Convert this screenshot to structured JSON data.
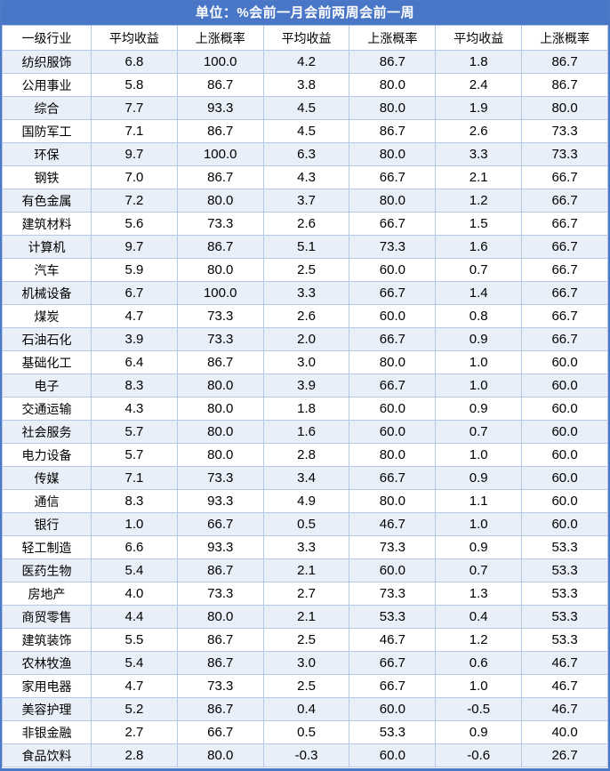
{
  "title": "单位：%会前一月会前两周会前一周",
  "chart_data": {
    "type": "table",
    "title": "单位：%会前一月会前两周会前一周",
    "columns": [
      "一级行业",
      "平均收益",
      "上涨概率",
      "平均收益",
      "上涨概率",
      "平均收益",
      "上涨概率"
    ],
    "rows": [
      [
        "纺织服饰",
        6.8,
        100.0,
        4.2,
        86.7,
        1.8,
        86.7
      ],
      [
        "公用事业",
        5.8,
        86.7,
        3.8,
        80.0,
        2.4,
        86.7
      ],
      [
        "综合",
        7.7,
        93.3,
        4.5,
        80.0,
        1.9,
        80.0
      ],
      [
        "国防军工",
        7.1,
        86.7,
        4.5,
        86.7,
        2.6,
        73.3
      ],
      [
        "环保",
        9.7,
        100.0,
        6.3,
        80.0,
        3.3,
        73.3
      ],
      [
        "钢铁",
        7.0,
        86.7,
        4.3,
        66.7,
        2.1,
        66.7
      ],
      [
        "有色金属",
        7.2,
        80.0,
        3.7,
        80.0,
        1.2,
        66.7
      ],
      [
        "建筑材料",
        5.6,
        73.3,
        2.6,
        66.7,
        1.5,
        66.7
      ],
      [
        "计算机",
        9.7,
        86.7,
        5.1,
        73.3,
        1.6,
        66.7
      ],
      [
        "汽车",
        5.9,
        80.0,
        2.5,
        60.0,
        0.7,
        66.7
      ],
      [
        "机械设备",
        6.7,
        100.0,
        3.3,
        66.7,
        1.4,
        66.7
      ],
      [
        "煤炭",
        4.7,
        73.3,
        2.6,
        60.0,
        0.8,
        66.7
      ],
      [
        "石油石化",
        3.9,
        73.3,
        2.0,
        66.7,
        0.9,
        66.7
      ],
      [
        "基础化工",
        6.4,
        86.7,
        3.0,
        80.0,
        1.0,
        60.0
      ],
      [
        "电子",
        8.3,
        80.0,
        3.9,
        66.7,
        1.0,
        60.0
      ],
      [
        "交通运输",
        4.3,
        80.0,
        1.8,
        60.0,
        0.9,
        60.0
      ],
      [
        "社会服务",
        5.7,
        80.0,
        1.6,
        60.0,
        0.7,
        60.0
      ],
      [
        "电力设备",
        5.7,
        80.0,
        2.8,
        80.0,
        1.0,
        60.0
      ],
      [
        "传媒",
        7.1,
        73.3,
        3.4,
        66.7,
        0.9,
        60.0
      ],
      [
        "通信",
        8.3,
        93.3,
        4.9,
        80.0,
        1.1,
        60.0
      ],
      [
        "银行",
        1.0,
        66.7,
        0.5,
        46.7,
        1.0,
        60.0
      ],
      [
        "轻工制造",
        6.6,
        93.3,
        3.3,
        73.3,
        0.9,
        53.3
      ],
      [
        "医药生物",
        5.4,
        86.7,
        2.1,
        60.0,
        0.7,
        53.3
      ],
      [
        "房地产",
        4.0,
        73.3,
        2.7,
        73.3,
        1.3,
        53.3
      ],
      [
        "商贸零售",
        4.4,
        80.0,
        2.1,
        53.3,
        0.4,
        53.3
      ],
      [
        "建筑装饰",
        5.5,
        86.7,
        2.5,
        46.7,
        1.2,
        53.3
      ],
      [
        "农林牧渔",
        5.4,
        86.7,
        3.0,
        66.7,
        0.6,
        46.7
      ],
      [
        "家用电器",
        4.7,
        73.3,
        2.5,
        66.7,
        1.0,
        46.7
      ],
      [
        "美容护理",
        5.2,
        86.7,
        0.4,
        60.0,
        -0.5,
        46.7
      ],
      [
        "非银金融",
        2.7,
        66.7,
        0.5,
        53.3,
        0.9,
        40.0
      ],
      [
        "食品饮料",
        2.8,
        80.0,
        -0.3,
        60.0,
        -0.6,
        26.7
      ]
    ]
  },
  "colors": {
    "title_bg": "#4a76c8",
    "title_text": "#ffffff",
    "grid_line": "#b6c9e4",
    "band_fill": "#e9eff8",
    "row_fill": "#ffffff",
    "cell_text": "#000000",
    "outer_border": "#4d7ac8"
  }
}
